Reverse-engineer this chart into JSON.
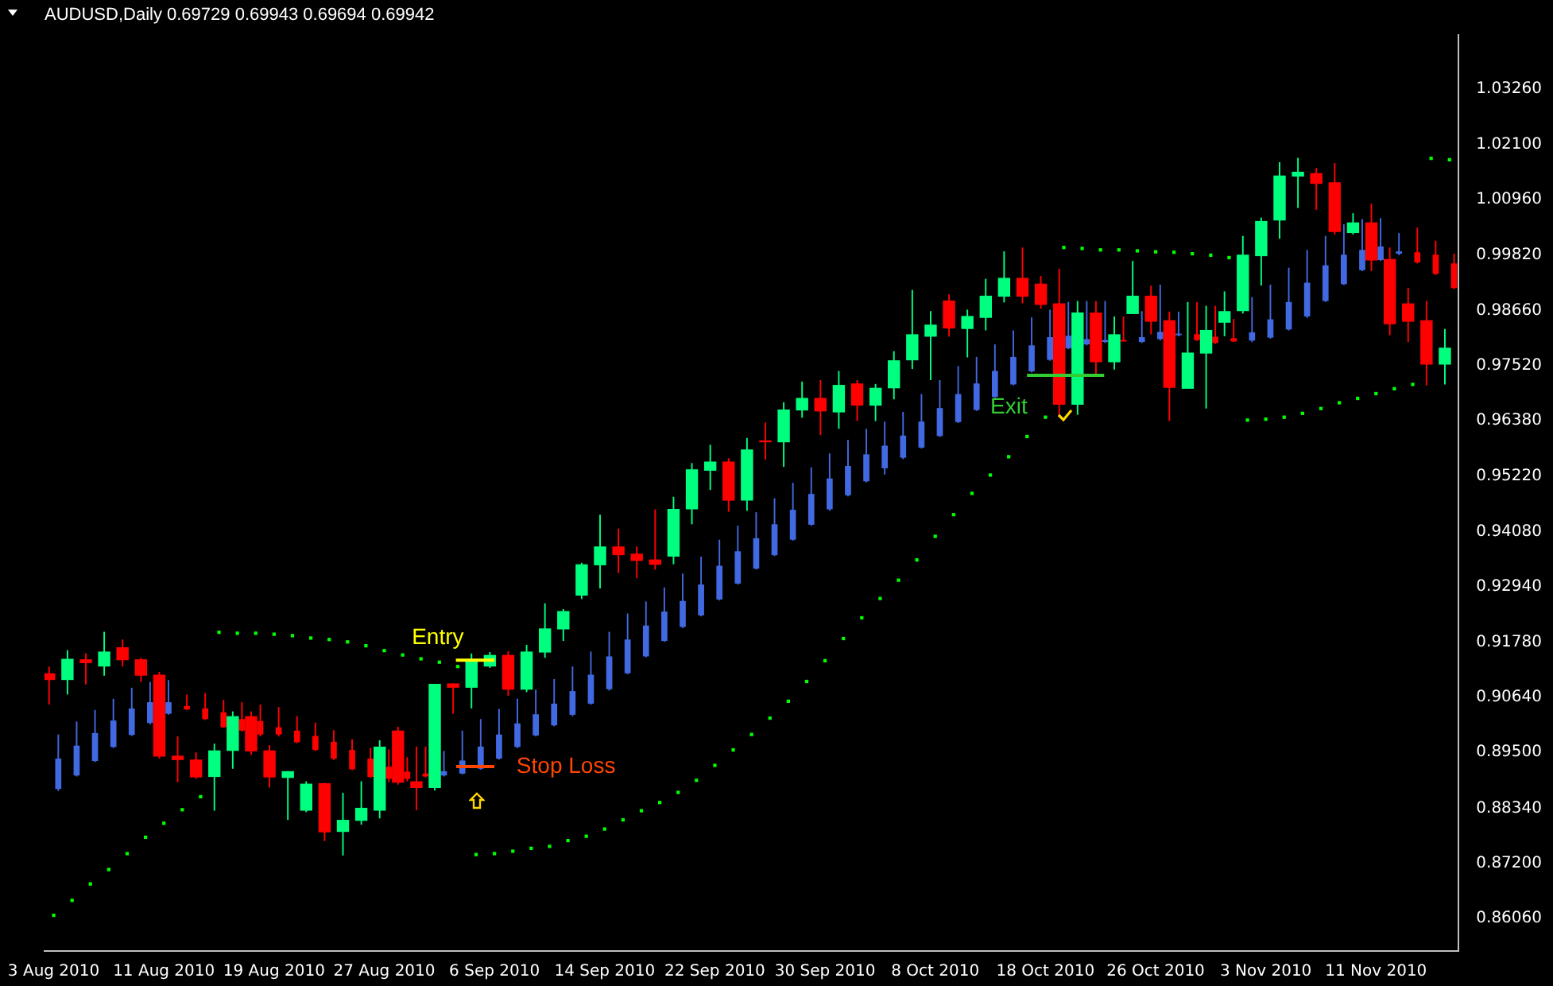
{
  "chart_data": {
    "type": "candlestick",
    "title": "AUDUSD,Daily 0.69729 0.69943 0.69694 0.69942",
    "categories": [
      "3 Aug 2010",
      null,
      null,
      null,
      null,
      null,
      "11 Aug 2010",
      null,
      null,
      null,
      null,
      null,
      "19 Aug 2010",
      null,
      null,
      null,
      null,
      null,
      "27 Aug 2010",
      null,
      null,
      null,
      null,
      null,
      "6 Sep 2010",
      null,
      null,
      null,
      null,
      null,
      "14 Sep 2010",
      null,
      null,
      null,
      null,
      null,
      "22 Sep 2010",
      null,
      null,
      null,
      null,
      null,
      "30 Sep 2010",
      null,
      null,
      null,
      null,
      null,
      "8 Oct 2010",
      null,
      null,
      null,
      null,
      null,
      "18 Oct 2010",
      null,
      null,
      null,
      null,
      null,
      "26 Oct 2010",
      null,
      null,
      null,
      null,
      null,
      "3 Nov 2010",
      null,
      null,
      null,
      null,
      null,
      "11 Nov 2010",
      null,
      null,
      null,
      null
    ],
    "ylim": [
      0.8538,
      1.0437
    ],
    "yticks": [
      {
        "value": 0.8606,
        "label": "0.86060"
      },
      {
        "value": 0.872,
        "label": "0.87200"
      },
      {
        "value": 0.8834,
        "label": "0.88340"
      },
      {
        "value": 0.895,
        "label": "0.89500"
      },
      {
        "value": 0.9064,
        "label": "0.90640"
      },
      {
        "value": 0.9178,
        "label": "0.91780"
      },
      {
        "value": 0.9294,
        "label": "0.92940"
      },
      {
        "value": 0.9408,
        "label": "0.94080"
      },
      {
        "value": 0.9522,
        "label": "0.95220"
      },
      {
        "value": 0.9638,
        "label": "0.96380"
      },
      {
        "value": 0.9752,
        "label": "0.97520"
      },
      {
        "value": 0.9866,
        "label": "0.98660"
      },
      {
        "value": 0.9982,
        "label": "0.99820"
      },
      {
        "value": 1.0096,
        "label": "1.00960"
      },
      {
        "value": 1.021,
        "label": "1.02100"
      },
      {
        "value": 1.0326,
        "label": "1.03260"
      }
    ],
    "grid": false,
    "legend": false,
    "marker": "square",
    "series": [
      {
        "type": "candlestick",
        "ohlc": [
          [
            0.9114,
            0.9128,
            0.9049,
            0.91
          ],
          [
            0.91,
            0.9162,
            0.907,
            0.9144
          ],
          [
            0.9143,
            0.9155,
            0.9091,
            0.9135
          ],
          [
            0.9128,
            0.92,
            0.9109,
            0.9159
          ],
          [
            0.9168,
            0.9184,
            0.9128,
            0.9141
          ],
          [
            0.9143,
            0.9146,
            0.9096,
            0.9109
          ],
          [
            0.9111,
            0.9117,
            0.8937,
            0.8941
          ],
          [
            0.8943,
            0.8983,
            0.8888,
            0.8934
          ],
          [
            0.8935,
            0.895,
            0.8895,
            0.8898
          ],
          [
            0.8899,
            0.8968,
            0.8829,
            0.8954
          ],
          [
            0.8953,
            0.9035,
            0.8916,
            0.9025
          ],
          [
            0.9025,
            0.9035,
            0.8945,
            0.8952
          ],
          [
            0.8954,
            0.8965,
            0.8877,
            0.8898
          ],
          [
            0.8897,
            0.8911,
            0.881,
            0.8911
          ],
          [
            0.8829,
            0.889,
            0.8826,
            0.8885
          ],
          [
            0.8886,
            0.8887,
            0.8766,
            0.8784
          ],
          [
            0.8785,
            0.8866,
            0.8736,
            0.881
          ],
          [
            0.8808,
            0.889,
            0.88,
            0.8835
          ],
          [
            0.8829,
            0.8975,
            0.8813,
            0.8962
          ],
          [
            0.8995,
            0.9003,
            0.8883,
            0.8887
          ],
          [
            0.889,
            0.8962,
            0.883,
            0.8876
          ],
          [
            0.8876,
            0.9092,
            0.8871,
            0.9092
          ],
          [
            0.9093,
            0.9093,
            0.903,
            0.9084
          ],
          [
            0.9084,
            0.9155,
            0.9041,
            0.9139
          ],
          [
            0.9128,
            0.9158,
            0.9125,
            0.9152
          ],
          [
            0.9152,
            0.916,
            0.9067,
            0.908
          ],
          [
            0.908,
            0.9173,
            0.9075,
            0.9159
          ],
          [
            0.9157,
            0.9259,
            0.9146,
            0.9207
          ],
          [
            0.9205,
            0.9247,
            0.9181,
            0.9243
          ],
          [
            0.9275,
            0.9343,
            0.9268,
            0.934
          ],
          [
            0.9338,
            0.9443,
            0.929,
            0.9377
          ],
          [
            0.9377,
            0.9414,
            0.9322,
            0.9359
          ],
          [
            0.9362,
            0.9377,
            0.9311,
            0.9347
          ],
          [
            0.935,
            0.9454,
            0.9329,
            0.9339
          ],
          [
            0.9356,
            0.948,
            0.934,
            0.9455
          ],
          [
            0.9454,
            0.955,
            0.9423,
            0.9537
          ],
          [
            0.9534,
            0.9588,
            0.9494,
            0.9553
          ],
          [
            0.9553,
            0.956,
            0.9449,
            0.9472
          ],
          [
            0.9472,
            0.9602,
            0.9451,
            0.9578
          ],
          [
            0.9597,
            0.9634,
            0.9557,
            0.9593
          ],
          [
            0.9593,
            0.9676,
            0.9542,
            0.9661
          ],
          [
            0.9659,
            0.9719,
            0.9644,
            0.9685
          ],
          [
            0.9685,
            0.9722,
            0.9608,
            0.9657
          ],
          [
            0.9655,
            0.9741,
            0.9621,
            0.9712
          ],
          [
            0.9715,
            0.9722,
            0.9637,
            0.9669
          ],
          [
            0.9669,
            0.9714,
            0.9637,
            0.9706
          ],
          [
            0.9705,
            0.9782,
            0.9682,
            0.9763
          ],
          [
            0.9763,
            0.9909,
            0.9745,
            0.9817
          ],
          [
            0.9812,
            0.9865,
            0.9722,
            0.9837
          ],
          [
            0.9887,
            0.99,
            0.9812,
            0.9829
          ],
          [
            0.9828,
            0.9868,
            0.9769,
            0.9855
          ],
          [
            0.9851,
            0.9932,
            0.9825,
            0.9897
          ],
          [
            0.9895,
            0.9989,
            0.9883,
            0.9934
          ],
          [
            0.9934,
            0.9997,
            0.9881,
            0.9895
          ],
          [
            0.9922,
            0.9938,
            0.987,
            0.9878
          ],
          [
            0.9881,
            0.9953,
            0.9646,
            0.9671
          ],
          [
            0.9671,
            0.9886,
            0.965,
            0.9862
          ],
          [
            0.9862,
            0.9886,
            0.9733,
            0.9759
          ],
          [
            0.9759,
            0.9854,
            0.9744,
            0.9817
          ],
          [
            0.9859,
            0.9969,
            0.9859,
            0.9897
          ],
          [
            0.9897,
            0.9918,
            0.9817,
            0.9843
          ],
          [
            0.9846,
            0.9864,
            0.9637,
            0.9706
          ],
          [
            0.9704,
            0.9884,
            0.9704,
            0.9779
          ],
          [
            0.9777,
            0.9876,
            0.9663,
            0.9826
          ],
          [
            0.9841,
            0.9906,
            0.9813,
            0.9865
          ],
          [
            0.9865,
            1.0021,
            0.986,
            0.9982
          ],
          [
            0.9979,
            1.0059,
            0.9918,
            1.0052
          ],
          [
            1.0053,
            1.0174,
            1.0015,
            1.0146
          ],
          [
            1.0144,
            1.0183,
            1.0079,
            1.0154
          ],
          [
            1.0151,
            1.0162,
            1.0075,
            1.0129
          ],
          [
            1.0132,
            1.0172,
            1.0024,
            1.0029
          ],
          [
            1.0027,
            1.0068,
            1.0024,
            1.0049
          ],
          [
            1.0049,
            1.0088,
            0.9948,
            0.997
          ],
          [
            0.9973,
            0.9997,
            0.9815,
            0.9838
          ],
          [
            0.9881,
            0.9913,
            0.9801,
            0.9843
          ],
          [
            0.9846,
            0.9886,
            0.9711,
            0.9754
          ],
          [
            0.9754,
            0.9828,
            0.9713,
            0.9789
          ]
        ],
        "colors": [
          "#ff0000",
          "#00ff7f",
          "#ff0000",
          "#00ff7f",
          "#ff0000",
          "#ff0000",
          "#ff0000",
          "#ff0000",
          "#ff0000",
          "#00ff7f",
          "#00ff7f",
          "#ff0000",
          "#ff0000",
          "#00ff7f",
          "#00ff7f",
          "#ff0000",
          "#00ff7f",
          "#00ff7f",
          "#00ff7f",
          "#ff0000",
          "#ff0000",
          "#00ff7f",
          "#ff0000",
          "#00ff7f",
          "#00ff7f",
          "#ff0000",
          "#00ff7f",
          "#00ff7f",
          "#00ff7f",
          "#00ff7f",
          "#00ff7f",
          "#ff0000",
          "#ff0000",
          "#ff0000",
          "#00ff7f",
          "#00ff7f",
          "#00ff7f",
          "#ff0000",
          "#00ff7f",
          "#ff0000",
          "#00ff7f",
          "#00ff7f",
          "#ff0000",
          "#00ff7f",
          "#ff0000",
          "#00ff7f",
          "#00ff7f",
          "#00ff7f",
          "#00ff7f",
          "#ff0000",
          "#00ff7f",
          "#00ff7f",
          "#00ff7f",
          "#ff0000",
          "#ff0000",
          "#ff0000",
          "#00ff7f",
          "#ff0000",
          "#00ff7f",
          "#00ff7f",
          "#ff0000",
          "#ff0000",
          "#00ff7f",
          "#00ff7f",
          "#00ff7f",
          "#00ff7f",
          "#00ff7f",
          "#00ff7f",
          "#00ff7f",
          "#ff0000",
          "#ff0000",
          "#00ff7f",
          "#ff0000",
          "#ff0000",
          "#ff0000",
          "#ff0000",
          "#00ff7f"
        ]
      },
      {
        "type": "candlestick",
        "ohlc": [
          [
            0.8874,
            0.8987,
            0.887,
            0.8937
          ],
          [
            0.8902,
            0.9014,
            0.89,
            0.8964
          ],
          [
            0.8932,
            0.9038,
            0.893,
            0.899
          ],
          [
            0.8961,
            0.9061,
            0.8959,
            0.9016
          ],
          [
            0.8986,
            0.9084,
            0.8984,
            0.9041
          ],
          [
            0.9011,
            0.9096,
            0.9008,
            0.9054
          ],
          [
            0.903,
            0.91,
            0.9028,
            0.9054
          ],
          [
            0.9046,
            0.907,
            0.9038,
            0.9039
          ],
          [
            0.9041,
            0.9073,
            0.9017,
            0.9019
          ],
          [
            0.9033,
            0.9059,
            0.9001,
            0.9002
          ],
          [
            0.9019,
            0.9054,
            0.8993,
            0.8995
          ],
          [
            0.9015,
            0.9049,
            0.8983,
            0.8987
          ],
          [
            0.9002,
            0.9044,
            0.8983,
            0.8987
          ],
          [
            0.8995,
            0.9025,
            0.8969,
            0.8971
          ],
          [
            0.8984,
            0.9012,
            0.8953,
            0.8955
          ],
          [
            0.8972,
            0.8996,
            0.8934,
            0.8937
          ],
          [
            0.8955,
            0.8977,
            0.8913,
            0.8915
          ],
          [
            0.8937,
            0.8959,
            0.8897,
            0.8899
          ],
          [
            0.892,
            0.8956,
            0.8888,
            0.8895
          ],
          [
            0.891,
            0.894,
            0.889,
            0.8895
          ],
          [
            0.8906,
            0.8962,
            0.8898,
            0.89
          ],
          [
            0.8902,
            0.8953,
            0.89,
            0.8911
          ],
          [
            0.8906,
            0.8995,
            0.8904,
            0.8933
          ],
          [
            0.8916,
            0.9019,
            0.8914,
            0.8962
          ],
          [
            0.8937,
            0.904,
            0.8935,
            0.8987
          ],
          [
            0.8961,
            0.9061,
            0.8959,
            0.901
          ],
          [
            0.8985,
            0.908,
            0.8983,
            0.9029
          ],
          [
            0.9006,
            0.9102,
            0.9004,
            0.9051
          ],
          [
            0.9028,
            0.9128,
            0.9025,
            0.9077
          ],
          [
            0.9051,
            0.9159,
            0.9049,
            0.9111
          ],
          [
            0.9081,
            0.92,
            0.9078,
            0.9149
          ],
          [
            0.9114,
            0.9238,
            0.9112,
            0.9184
          ],
          [
            0.9149,
            0.9263,
            0.9147,
            0.9213
          ],
          [
            0.9181,
            0.9292,
            0.9179,
            0.9242
          ],
          [
            0.921,
            0.9321,
            0.9208,
            0.9264
          ],
          [
            0.9234,
            0.9356,
            0.9232,
            0.9298
          ],
          [
            0.9267,
            0.9391,
            0.9265,
            0.9337
          ],
          [
            0.93,
            0.942,
            0.9298,
            0.9367
          ],
          [
            0.9331,
            0.9448,
            0.9329,
            0.9394
          ],
          [
            0.9359,
            0.9477,
            0.9357,
            0.9423
          ],
          [
            0.9391,
            0.9509,
            0.9389,
            0.9453
          ],
          [
            0.9422,
            0.9541,
            0.942,
            0.9486
          ],
          [
            0.9454,
            0.957,
            0.9451,
            0.9518
          ],
          [
            0.9483,
            0.9598,
            0.9481,
            0.9544
          ],
          [
            0.9512,
            0.9621,
            0.951,
            0.9568
          ],
          [
            0.9539,
            0.9636,
            0.9526,
            0.9586
          ],
          [
            0.9561,
            0.9656,
            0.9558,
            0.9607
          ],
          [
            0.9582,
            0.9693,
            0.958,
            0.9636
          ],
          [
            0.9606,
            0.9722,
            0.9604,
            0.9664
          ],
          [
            0.9635,
            0.9751,
            0.9633,
            0.9693
          ],
          [
            0.966,
            0.977,
            0.9658,
            0.9715
          ],
          [
            0.9687,
            0.9796,
            0.9685,
            0.9741
          ],
          [
            0.9713,
            0.9825,
            0.9711,
            0.977
          ],
          [
            0.974,
            0.9852,
            0.9738,
            0.9794
          ],
          [
            0.9764,
            0.9868,
            0.9762,
            0.9811
          ],
          [
            0.9788,
            0.9884,
            0.9786,
            0.9814
          ],
          [
            0.9796,
            0.9886,
            0.9794,
            0.9807
          ],
          [
            0.9801,
            0.9886,
            0.9799,
            0.9805
          ],
          [
            0.9805,
            0.9854,
            0.9802,
            0.9802
          ],
          [
            0.9801,
            0.9865,
            0.9799,
            0.9811
          ],
          [
            0.9807,
            0.992,
            0.9804,
            0.9822
          ],
          [
            0.9815,
            0.9864,
            0.9813,
            0.9818
          ],
          [
            0.9817,
            0.9884,
            0.9803,
            0.9805
          ],
          [
            0.9812,
            0.9876,
            0.9797,
            0.9799
          ],
          [
            0.9809,
            0.9849,
            0.9801,
            0.9802
          ],
          [
            0.9804,
            0.9894,
            0.9801,
            0.9821
          ],
          [
            0.981,
            0.992,
            0.9808,
            0.9848
          ],
          [
            0.9827,
            0.9955,
            0.9825,
            0.9884
          ],
          [
            0.9854,
            0.9992,
            0.9851,
            0.9924
          ],
          [
            0.9886,
            1.0021,
            0.9884,
            0.996
          ],
          [
            0.9921,
            1.0045,
            0.9919,
            0.9982
          ],
          [
            0.995,
            1.0056,
            0.9948,
            0.9992
          ],
          [
            0.9971,
            1.0058,
            0.9969,
            0.9999
          ],
          [
            0.9984,
            1.0027,
            0.9981,
            0.9989
          ],
          [
            0.9987,
            1.0038,
            0.9964,
            0.9966
          ],
          [
            0.9982,
            1.0011,
            0.994,
            0.9942
          ],
          [
            0.9964,
            0.9984,
            0.9911,
            0.9913
          ]
        ],
        "colors": [
          "#4169e1",
          "#4169e1",
          "#4169e1",
          "#4169e1",
          "#4169e1",
          "#4169e1",
          "#4169e1",
          "#ff0000",
          "#ff0000",
          "#ff0000",
          "#ff0000",
          "#ff0000",
          "#ff0000",
          "#ff0000",
          "#ff0000",
          "#ff0000",
          "#ff0000",
          "#ff0000",
          "#ff0000",
          "#ff0000",
          "#ff0000",
          "#4169e1",
          "#4169e1",
          "#4169e1",
          "#4169e1",
          "#4169e1",
          "#4169e1",
          "#4169e1",
          "#4169e1",
          "#4169e1",
          "#4169e1",
          "#4169e1",
          "#4169e1",
          "#4169e1",
          "#4169e1",
          "#4169e1",
          "#4169e1",
          "#4169e1",
          "#4169e1",
          "#4169e1",
          "#4169e1",
          "#4169e1",
          "#4169e1",
          "#4169e1",
          "#4169e1",
          "#4169e1",
          "#4169e1",
          "#4169e1",
          "#4169e1",
          "#4169e1",
          "#4169e1",
          "#4169e1",
          "#4169e1",
          "#4169e1",
          "#4169e1",
          "#4169e1",
          "#4169e1",
          "#4169e1",
          "#ff0000",
          "#4169e1",
          "#4169e1",
          "#4169e1",
          "#ff0000",
          "#ff0000",
          "#ff0000",
          "#4169e1",
          "#4169e1",
          "#4169e1",
          "#4169e1",
          "#4169e1",
          "#4169e1",
          "#4169e1",
          "#4169e1",
          "#4169e1",
          "#ff0000",
          "#ff0000",
          "#ff0000"
        ]
      },
      {
        "type": "scatter",
        "color": "#00ff00",
        "values": [
          0.8612,
          0.8643,
          0.8677,
          0.8707,
          0.874,
          0.8774,
          0.8803,
          0.8831,
          0.8858,
          0.9199,
          0.9197,
          0.9197,
          0.9195,
          0.9192,
          0.9187,
          0.9184,
          0.9179,
          0.9171,
          0.9161,
          0.9152,
          0.9144,
          0.9137,
          0.9128,
          0.8738,
          0.874,
          0.8745,
          0.8751,
          0.8755,
          0.8767,
          0.8776,
          0.8791,
          0.881,
          0.8829,
          0.8846,
          0.8867,
          0.8892,
          0.8923,
          0.8955,
          0.8987,
          0.9021,
          0.9056,
          0.9097,
          0.914,
          0.9186,
          0.9229,
          0.9269,
          0.9307,
          0.9349,
          0.9398,
          0.9443,
          0.9487,
          0.9525,
          0.9563,
          0.9605,
          0.9645,
          0.9997,
          0.9995,
          0.9992,
          0.9992,
          0.999,
          0.9988,
          0.9987,
          0.9984,
          0.9981,
          0.9976,
          0.9639,
          0.9641,
          0.9645,
          0.9653,
          0.9663,
          0.9675,
          0.9684,
          0.9694,
          0.9704,
          0.9713,
          1.0182,
          1.0179
        ]
      }
    ],
    "annotations": [
      {
        "text": "Entry",
        "y": 0.9141
      },
      "Stop Loss",
      {
        "text": "Exit",
        "y": 0.9732
      }
    ]
  }
}
